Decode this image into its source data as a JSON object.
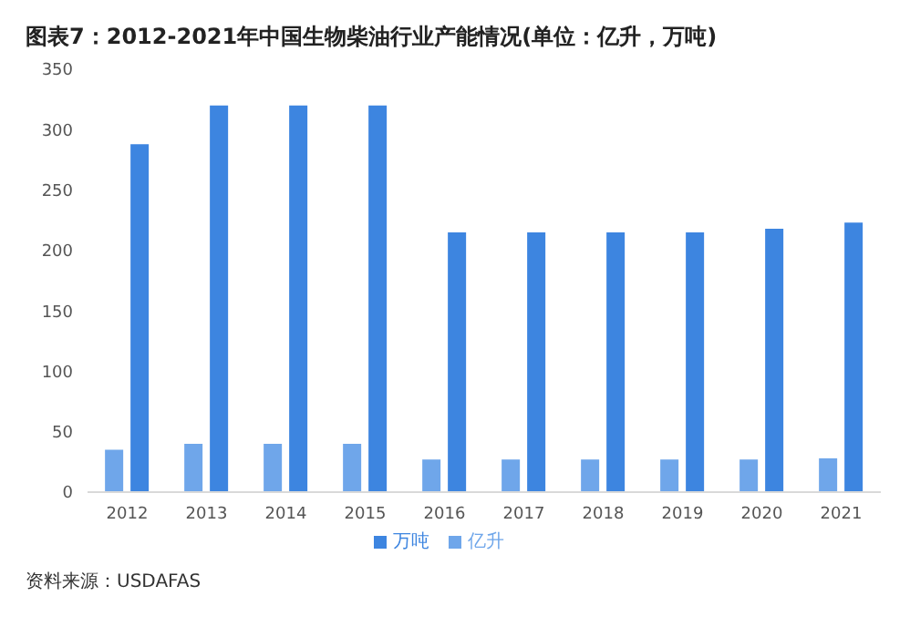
{
  "chart_data": {
    "type": "bar",
    "title": "图表7：2012-2021年中国生物柴油行业产能情况(单位：亿升，万吨)",
    "categories": [
      "2012",
      "2013",
      "2014",
      "2015",
      "2016",
      "2017",
      "2018",
      "2019",
      "2020",
      "2021"
    ],
    "series": [
      {
        "name": "亿升",
        "color": "#6fa6ea",
        "values": [
          35,
          40,
          40,
          40,
          27,
          27,
          27,
          27,
          27,
          28
        ]
      },
      {
        "name": "万吨",
        "color": "#3d85e0",
        "values": [
          288,
          320,
          320,
          320,
          215,
          215,
          215,
          215,
          218,
          223
        ]
      }
    ],
    "ylim": [
      0,
      350
    ],
    "yticks": [
      0,
      50,
      100,
      150,
      200,
      250,
      300,
      350
    ],
    "grid": false,
    "legend": "bottom",
    "annotations": [
      "资料来源：USDAFAS"
    ]
  }
}
